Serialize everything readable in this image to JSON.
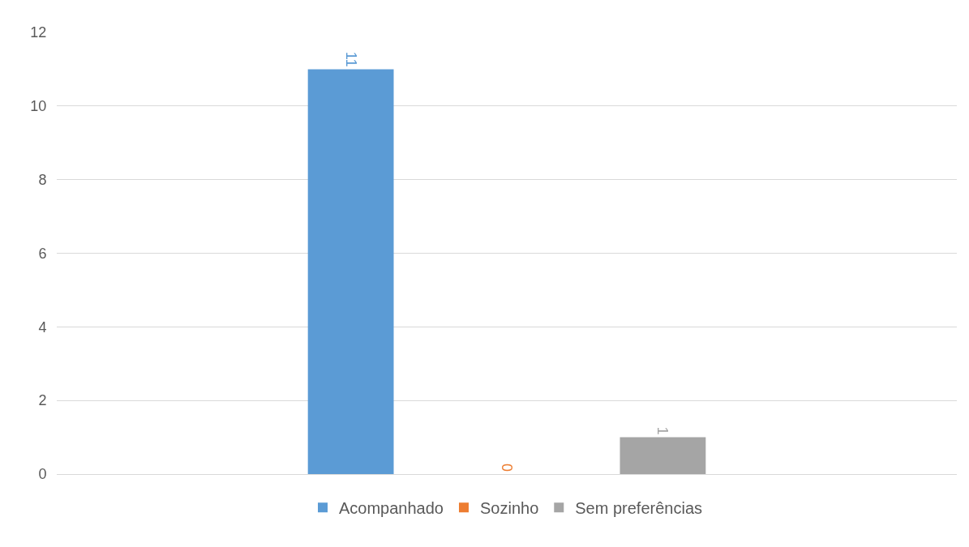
{
  "chart_data": {
    "type": "bar",
    "categories": [
      null
    ],
    "series": [
      {
        "name": "Acompanhado",
        "color": "#5b9bd5",
        "values": [
          11
        ]
      },
      {
        "name": "Sozinho",
        "color": "#ed7d31",
        "values": [
          0
        ]
      },
      {
        "name": "Sem preferências",
        "color": "#a5a5a5",
        "values": [
          1
        ]
      }
    ],
    "ylim": [
      0,
      12
    ],
    "yticks": [
      0,
      2,
      4,
      6,
      8,
      10,
      12
    ],
    "grid": "y",
    "legend": "bottom",
    "data_labels": true
  }
}
